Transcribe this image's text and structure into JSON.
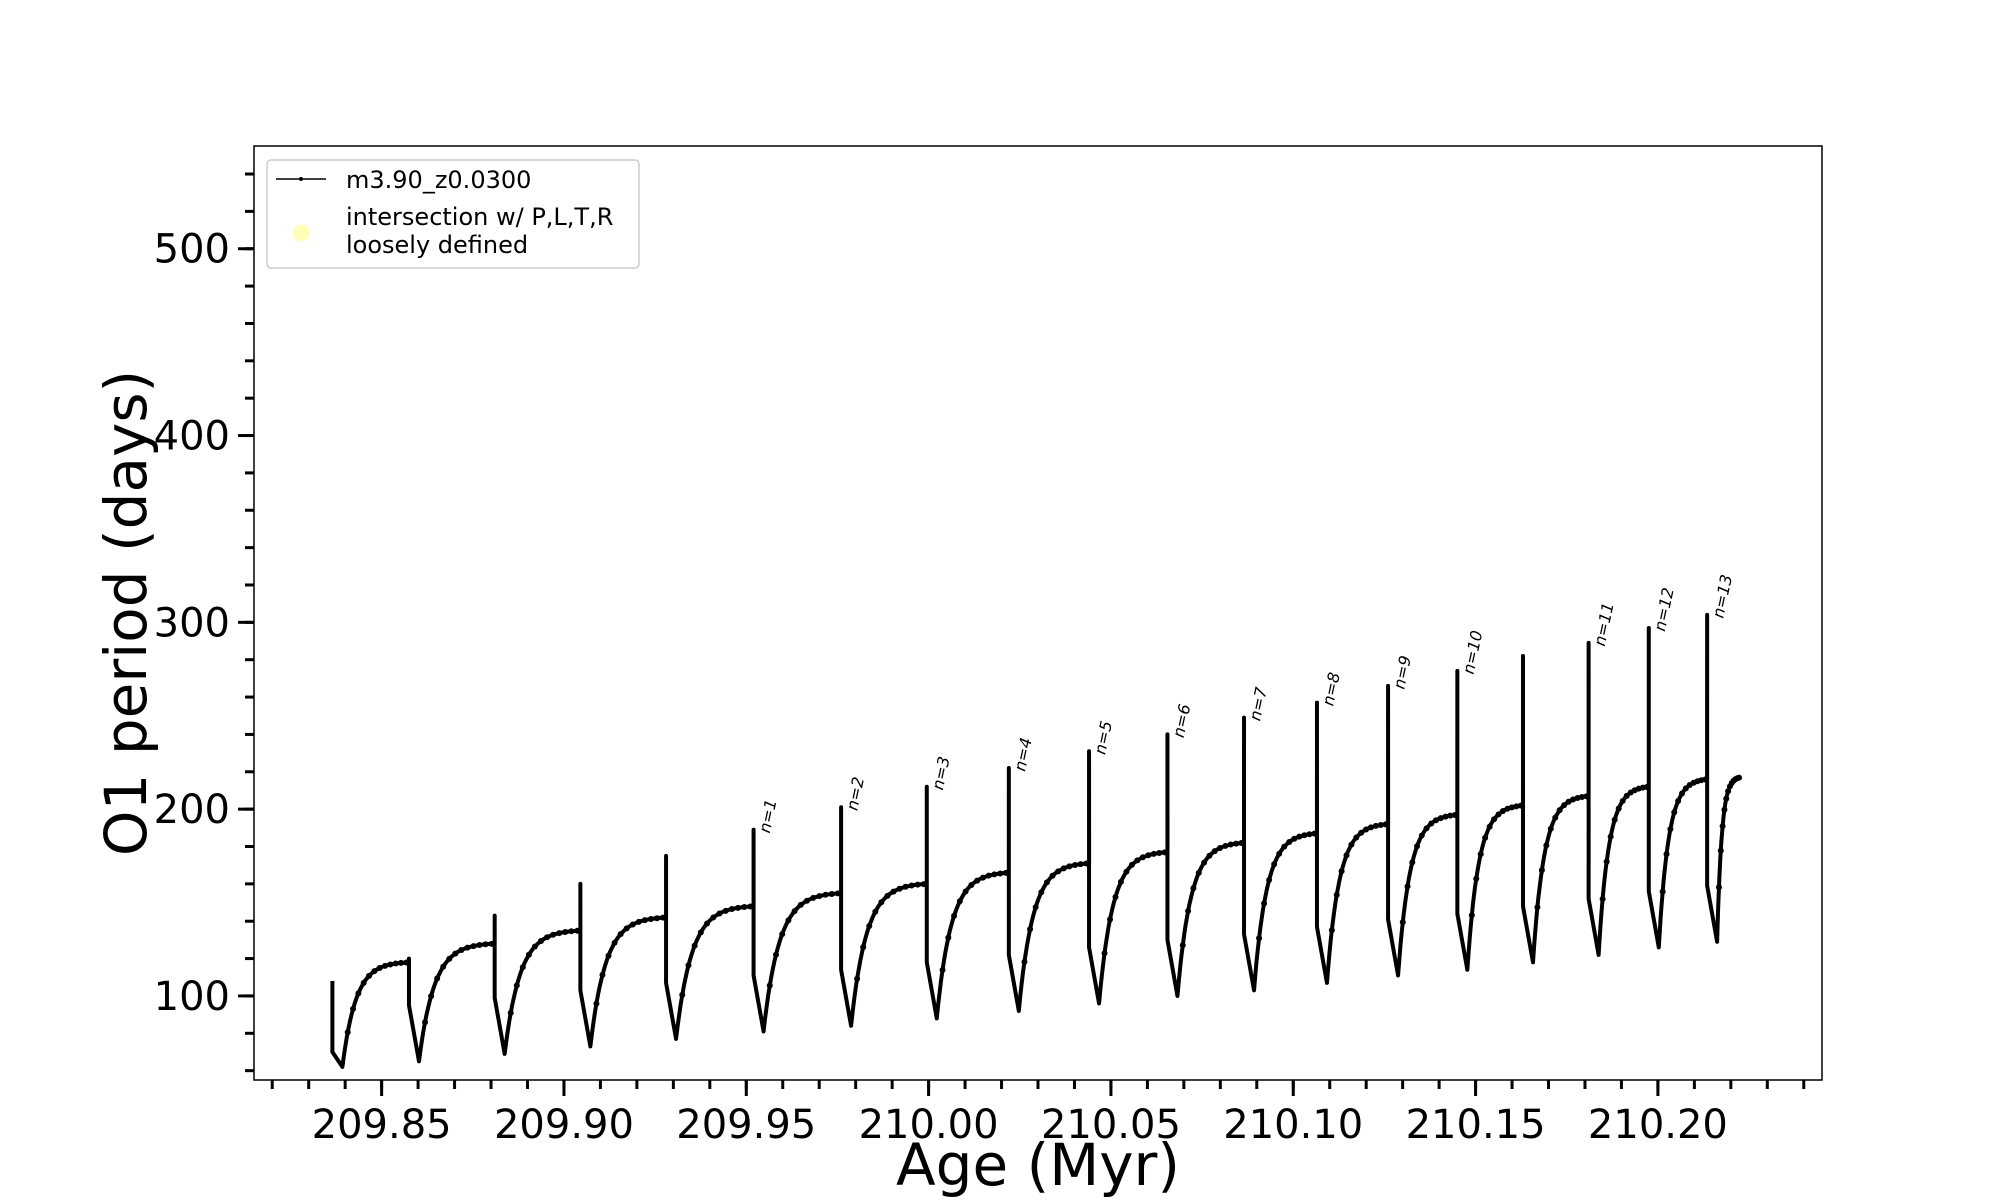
{
  "chart_data": {
    "type": "line",
    "xlabel": "Age (Myr)",
    "ylabel": "O1 period (days)",
    "xlim": [
      209.815,
      210.245
    ],
    "ylim": [
      55,
      555
    ],
    "x_ticks": [
      209.85,
      209.9,
      209.95,
      210.0,
      210.05,
      210.1,
      210.15,
      210.2
    ],
    "x_tick_labels": [
      "209.85",
      "209.90",
      "209.95",
      "210.00",
      "210.05",
      "210.10",
      "210.15",
      "210.20"
    ],
    "y_ticks": [
      100,
      200,
      300,
      400,
      500
    ],
    "y_tick_labels": [
      "100",
      "200",
      "300",
      "400",
      "500"
    ],
    "legend_position": "top-left",
    "legend": [
      {
        "label": "m3.90_z0.0300",
        "marker": "line"
      },
      {
        "label": "intersection w/ P,L,T,R",
        "label2": "loosely defined",
        "marker": "circle",
        "color": "#ffffb3"
      }
    ],
    "series": [
      {
        "name": "m3.90_z0.0300",
        "color": "#000000",
        "end_age": 210.2225,
        "end_period": 217,
        "cycles": [
          {
            "x": 209.8365,
            "peak": 108,
            "min": 62,
            "plateau": 118,
            "label": ""
          },
          {
            "x": 209.8575,
            "peak": 120,
            "min": 65,
            "plateau": 128,
            "label": ""
          },
          {
            "x": 209.881,
            "peak": 143,
            "min": 69,
            "plateau": 135,
            "label": ""
          },
          {
            "x": 209.9045,
            "peak": 160,
            "min": 73,
            "plateau": 142,
            "label": ""
          },
          {
            "x": 209.928,
            "peak": 175,
            "min": 77,
            "plateau": 148,
            "label": ""
          },
          {
            "x": 209.952,
            "peak": 189,
            "min": 81,
            "plateau": 155,
            "label": "n=1"
          },
          {
            "x": 209.976,
            "peak": 201,
            "min": 84,
            "plateau": 160,
            "label": "n=2"
          },
          {
            "x": 209.9995,
            "peak": 212,
            "min": 88,
            "plateau": 166,
            "label": "n=3"
          },
          {
            "x": 210.022,
            "peak": 222,
            "min": 92,
            "plateau": 171,
            "label": "n=4"
          },
          {
            "x": 210.044,
            "peak": 231,
            "min": 96,
            "plateau": 177,
            "label": "n=5"
          },
          {
            "x": 210.0655,
            "peak": 240,
            "min": 100,
            "plateau": 182,
            "label": "n=6"
          },
          {
            "x": 210.0865,
            "peak": 249,
            "min": 103,
            "plateau": 187,
            "label": "n=7"
          },
          {
            "x": 210.1065,
            "peak": 257,
            "min": 107,
            "plateau": 192,
            "label": "n=8"
          },
          {
            "x": 210.126,
            "peak": 266,
            "min": 111,
            "plateau": 197,
            "label": "n=9"
          },
          {
            "x": 210.145,
            "peak": 274,
            "min": 114,
            "plateau": 202,
            "label": "n=10"
          },
          {
            "x": 210.163,
            "peak": 282,
            "min": 118,
            "plateau": 207,
            "label": ""
          },
          {
            "x": 210.181,
            "peak": 289,
            "min": 122,
            "plateau": 212,
            "label": "n=11"
          },
          {
            "x": 210.1975,
            "peak": 297,
            "min": 126,
            "plateau": 216,
            "label": "n=12"
          },
          {
            "x": 210.2135,
            "peak": 304,
            "min": 129,
            "plateau": null,
            "label": "n=13"
          }
        ]
      }
    ]
  }
}
